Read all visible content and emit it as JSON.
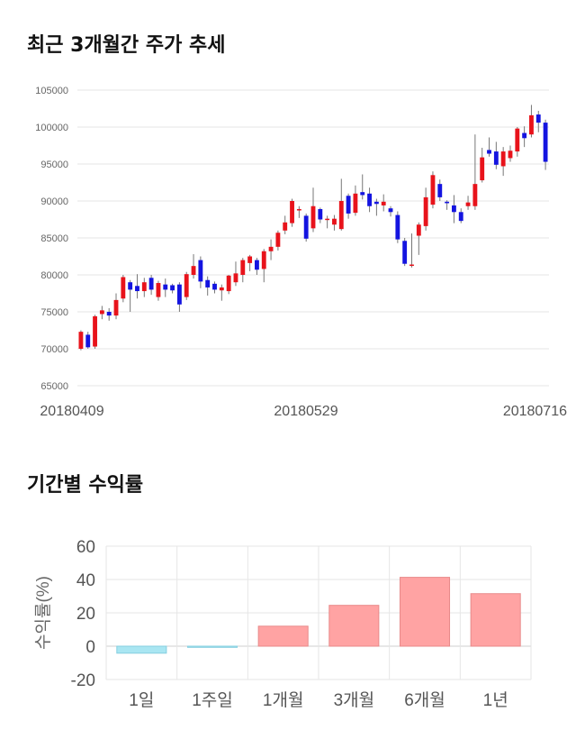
{
  "sections": {
    "price_title": "최근 3개월간 주가 추세",
    "returns_title": "기간별 수익률"
  },
  "colors": {
    "up": "#e8131b",
    "down": "#1414e0",
    "pos_bar": "#ffa3a3",
    "neg_bar": "#a9e6f2",
    "grid": "#e6e6e6"
  },
  "chart_data": [
    {
      "type": "candlestick",
      "title": "최근 3개월간 주가 추세",
      "ylim": [
        65000,
        105000
      ],
      "yticks": [
        65000,
        70000,
        75000,
        80000,
        85000,
        90000,
        95000,
        100000,
        105000
      ],
      "xticks": [
        "20180409",
        "20180529",
        "20180716"
      ],
      "grid": true,
      "candles": [
        [
          70000,
          72300,
          69800,
          72500
        ],
        [
          71900,
          70200,
          70000,
          72300
        ],
        [
          70300,
          74400,
          70000,
          74600
        ],
        [
          74700,
          75200,
          74000,
          75800
        ],
        [
          75000,
          74500,
          73800,
          75500
        ],
        [
          74500,
          76600,
          74000,
          77500
        ],
        [
          76800,
          79700,
          76300,
          80000
        ],
        [
          79000,
          78000,
          75000,
          79300
        ],
        [
          78500,
          77800,
          76800,
          80100
        ],
        [
          77800,
          79000,
          77000,
          79600
        ],
        [
          79600,
          78000,
          77300,
          80000
        ],
        [
          77000,
          78900,
          76500,
          79200
        ],
        [
          78700,
          78000,
          77000,
          79500
        ],
        [
          78600,
          77900,
          77500,
          78800
        ],
        [
          78700,
          76000,
          75000,
          79000
        ],
        [
          77000,
          80100,
          76600,
          80400
        ],
        [
          80000,
          81200,
          79500,
          82800
        ],
        [
          82000,
          79100,
          78200,
          82500
        ],
        [
          79300,
          78300,
          77200,
          79800
        ],
        [
          78800,
          78000,
          77500,
          79100
        ],
        [
          77900,
          78300,
          76500,
          78700
        ],
        [
          77800,
          79900,
          77400,
          80000
        ],
        [
          79000,
          80200,
          78500,
          81800
        ],
        [
          80000,
          82000,
          79000,
          82300
        ],
        [
          81600,
          82500,
          80500,
          82700
        ],
        [
          82000,
          80700,
          80000,
          82300
        ],
        [
          80800,
          83200,
          79000,
          83500
        ],
        [
          83200,
          83800,
          82000,
          84800
        ],
        [
          83800,
          85700,
          83300,
          86000
        ],
        [
          86000,
          87100,
          85500,
          88000
        ],
        [
          87000,
          90000,
          86500,
          90300
        ],
        [
          88800,
          88900,
          87700,
          89300
        ],
        [
          88000,
          84900,
          84500,
          88300
        ],
        [
          86300,
          89300,
          85800,
          91800
        ],
        [
          88900,
          87500,
          87000,
          89100
        ],
        [
          87600,
          87600,
          86300,
          88000
        ],
        [
          86800,
          87600,
          86000,
          88100
        ],
        [
          86200,
          90000,
          86000,
          93000
        ],
        [
          90700,
          88300,
          87600,
          91000
        ],
        [
          88400,
          91000,
          88000,
          92100
        ],
        [
          91200,
          90800,
          90200,
          93600
        ],
        [
          91000,
          89300,
          88500,
          91800
        ],
        [
          89900,
          89600,
          88000,
          90300
        ],
        [
          89400,
          89900,
          88600,
          90900
        ],
        [
          89000,
          88500,
          87900,
          89300
        ],
        [
          88100,
          84800,
          84300,
          88600
        ],
        [
          84600,
          81500,
          81200,
          85000
        ],
        [
          81300,
          81400,
          81000,
          85600
        ],
        [
          85300,
          86800,
          82700,
          87100
        ],
        [
          86600,
          90500,
          86000,
          91800
        ],
        [
          89500,
          93500,
          89000,
          94000
        ],
        [
          92300,
          90500,
          90000,
          92900
        ],
        [
          89900,
          89700,
          88800,
          90100
        ],
        [
          89400,
          88500,
          87000,
          90800
        ],
        [
          88500,
          87300,
          87000,
          89000
        ],
        [
          89300,
          89800,
          88800,
          90700
        ],
        [
          89300,
          92300,
          88800,
          99000
        ],
        [
          92800,
          95900,
          92500,
          97200
        ],
        [
          96900,
          96400,
          96000,
          98600
        ],
        [
          96700,
          94900,
          94300,
          98000
        ],
        [
          94700,
          96700,
          93400,
          97300
        ],
        [
          95800,
          96800,
          95300,
          97500
        ],
        [
          96700,
          99800,
          96000,
          100000
        ],
        [
          99200,
          98500,
          97300,
          100100
        ],
        [
          99000,
          101600,
          98600,
          103000
        ],
        [
          101700,
          100600,
          99300,
          102200
        ],
        [
          100600,
          95300,
          94200,
          101000
        ]
      ]
    },
    {
      "type": "bar",
      "title": "기간별 수익률",
      "ylabel": "수익률(%)",
      "ylim": [
        -20,
        60
      ],
      "yticks": [
        -20,
        0,
        20,
        40,
        60
      ],
      "categories": [
        "1일",
        "1주일",
        "1개월",
        "3개월",
        "6개월",
        "1년"
      ],
      "values": [
        -4.2,
        -0.7,
        12,
        24.5,
        41.3,
        31.5
      ]
    }
  ]
}
